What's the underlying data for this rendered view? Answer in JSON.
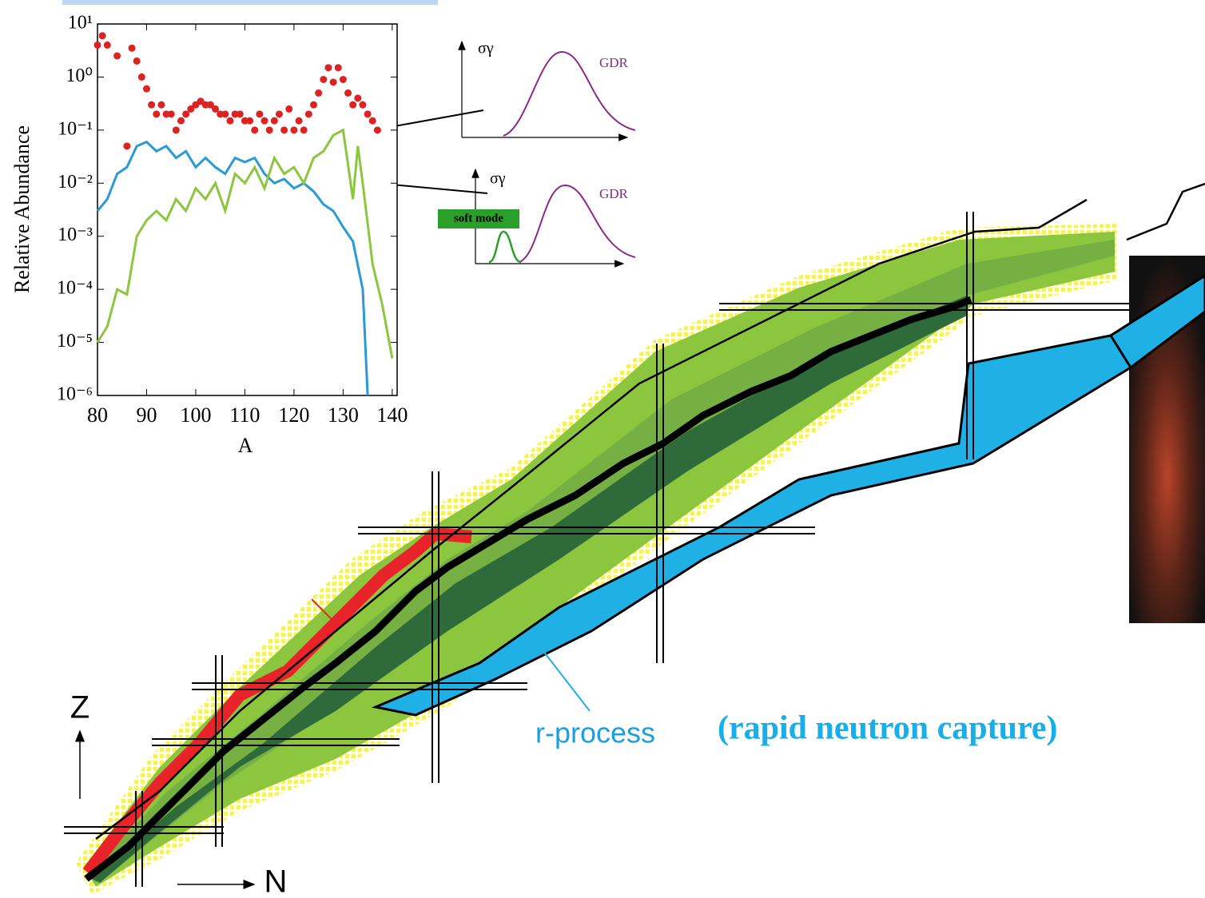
{
  "chart_data": {
    "type": "line",
    "yscale": "log",
    "ylabel": "Relative Abundance",
    "xlabel": "A",
    "xlim": [
      80,
      141
    ],
    "xticks": [
      80,
      90,
      100,
      110,
      120,
      130,
      140
    ],
    "ylim": [
      1e-06,
      10
    ],
    "yticks": [
      {
        "value": 10,
        "label": "10¹"
      },
      {
        "value": 1,
        "label": "10⁰"
      },
      {
        "value": 0.1,
        "label": "10⁻¹"
      },
      {
        "value": 0.01,
        "label": "10⁻²"
      },
      {
        "value": 0.001,
        "label": "10⁻³"
      },
      {
        "value": 0.0001,
        "label": "10⁻⁴"
      },
      {
        "value": 1e-05,
        "label": "10⁻⁵"
      },
      {
        "value": 1e-06,
        "label": "10⁻⁶"
      }
    ],
    "series": [
      {
        "color": "#dd2222",
        "style": "markers",
        "x": [
          80,
          81,
          82,
          84,
          86,
          87,
          88,
          89,
          90,
          91,
          92,
          93,
          94,
          95,
          96,
          97,
          98,
          99,
          100,
          101,
          102,
          103,
          104,
          105,
          106,
          107,
          108,
          109,
          110,
          111,
          112,
          113,
          114,
          115,
          116,
          117,
          118,
          119,
          120,
          121,
          122,
          123,
          124,
          125,
          126,
          127,
          128,
          129,
          130,
          131,
          132,
          133,
          134,
          135,
          136,
          137
        ],
        "values": [
          4,
          6,
          4,
          2.5,
          0.05,
          3.5,
          2,
          1,
          0.6,
          0.3,
          0.2,
          0.3,
          0.2,
          0.2,
          0.1,
          0.15,
          0.2,
          0.25,
          0.3,
          0.35,
          0.3,
          0.3,
          0.25,
          0.2,
          0.2,
          0.15,
          0.2,
          0.2,
          0.15,
          0.15,
          0.1,
          0.2,
          0.15,
          0.1,
          0.15,
          0.2,
          0.1,
          0.25,
          0.1,
          0.15,
          0.1,
          0.2,
          0.3,
          0.5,
          0.9,
          1.5,
          0.8,
          1.5,
          0.9,
          0.5,
          0.3,
          0.4,
          0.3,
          0.2,
          0.15,
          0.1
        ]
      },
      {
        "color": "#2a9ad6",
        "style": "line",
        "x": [
          80,
          82,
          84,
          86,
          88,
          90,
          92,
          94,
          96,
          98,
          100,
          102,
          104,
          106,
          108,
          110,
          112,
          114,
          116,
          118,
          120,
          122,
          124,
          126,
          128,
          130,
          132,
          134,
          135
        ],
        "values": [
          0.003,
          0.005,
          0.015,
          0.02,
          0.05,
          0.06,
          0.04,
          0.05,
          0.03,
          0.04,
          0.02,
          0.03,
          0.02,
          0.015,
          0.03,
          0.025,
          0.03,
          0.015,
          0.01,
          0.012,
          0.008,
          0.01,
          0.007,
          0.004,
          0.003,
          0.0015,
          0.0008,
          0.0001,
          1e-06
        ]
      },
      {
        "color": "#8cc63f",
        "style": "line",
        "x": [
          80,
          82,
          84,
          86,
          88,
          90,
          92,
          94,
          96,
          98,
          100,
          102,
          104,
          106,
          108,
          110,
          112,
          114,
          116,
          118,
          120,
          122,
          124,
          126,
          128,
          130,
          132,
          133,
          134,
          136,
          138,
          140
        ],
        "values": [
          1e-05,
          2e-05,
          0.0001,
          8e-05,
          0.001,
          0.002,
          0.003,
          0.002,
          0.005,
          0.003,
          0.008,
          0.005,
          0.01,
          0.003,
          0.015,
          0.01,
          0.02,
          0.008,
          0.03,
          0.015,
          0.02,
          0.01,
          0.03,
          0.04,
          0.08,
          0.1,
          0.005,
          0.05,
          0.01,
          0.0003,
          5e-05,
          5e-06
        ]
      }
    ]
  },
  "insets": [
    {
      "ylabel": "σγ",
      "peak_label": "GDR"
    },
    {
      "ylabel": "σγ",
      "peak_label": "GDR",
      "soft_label": "soft mode"
    }
  ],
  "nuclide_chart": {
    "z_label": "Z",
    "n_label": "N",
    "r_process_label": "r-process",
    "r_process_note": "(rapid neutron capture)"
  }
}
